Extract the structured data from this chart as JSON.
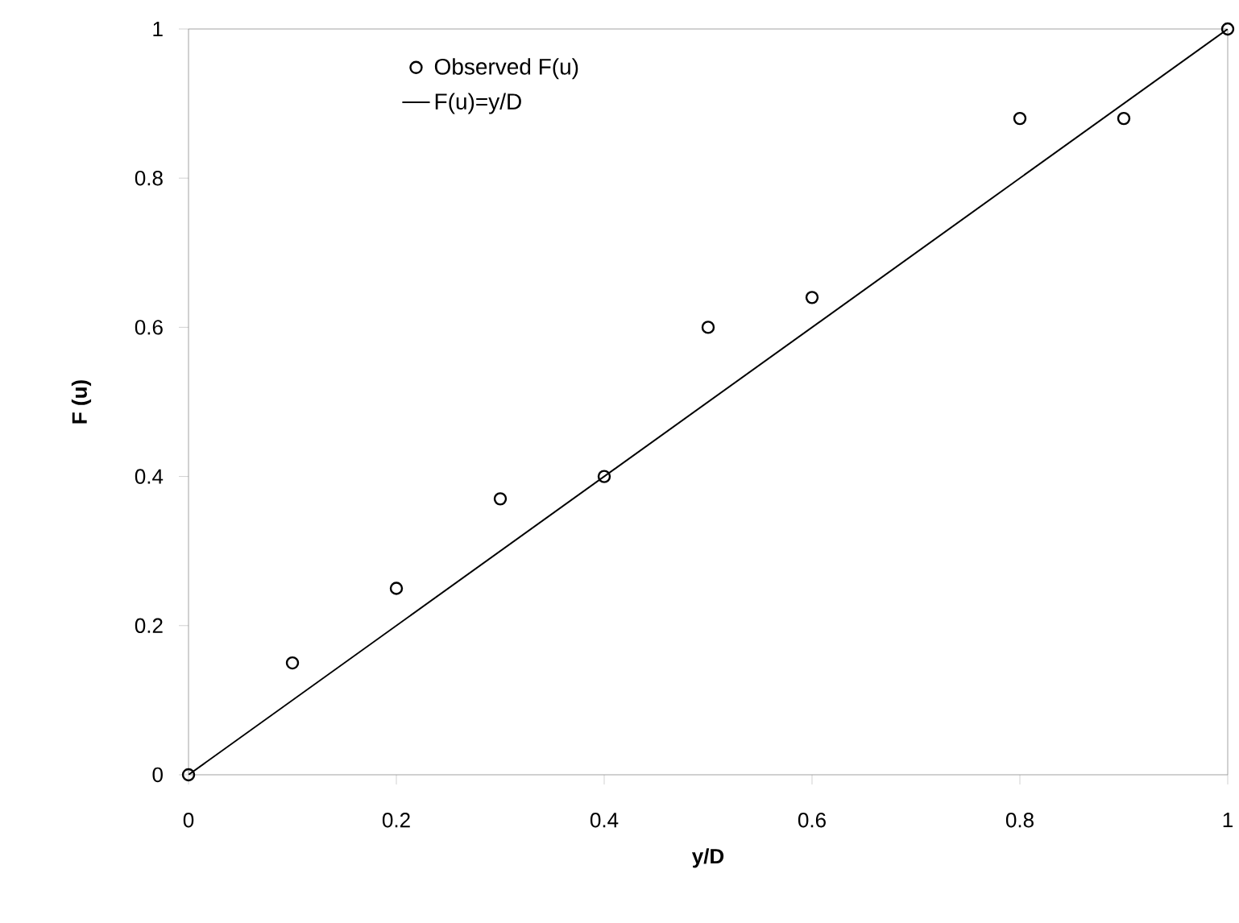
{
  "chart_data": {
    "type": "scatter",
    "xlabel": "y/D",
    "ylabel": "F (u)",
    "series": [
      {
        "name": "Observed F(u)",
        "color": "#000000",
        "marker": "circle",
        "x": [
          0,
          0.1,
          0.2,
          0.3,
          0.4,
          0.5,
          0.6,
          0.8,
          0.9,
          1
        ],
        "values": [
          0,
          0.15,
          0.25,
          0.37,
          0.4,
          0.6,
          0.64,
          0.88,
          0.88,
          1
        ]
      },
      {
        "name": "F(u)=y/D",
        "type": "line",
        "color": "#000000",
        "marker": "none",
        "line_style": "solid",
        "x": [
          0,
          1
        ],
        "values": [
          0,
          1
        ]
      }
    ],
    "xlim": [
      0,
      1
    ],
    "ylim": [
      0,
      1
    ],
    "xticks": [
      0,
      0.2,
      0.4,
      0.6,
      0.8,
      1
    ],
    "yticks": [
      0,
      0.2,
      0.4,
      0.6,
      0.8,
      1
    ],
    "grid": false,
    "legend": "top left"
  }
}
